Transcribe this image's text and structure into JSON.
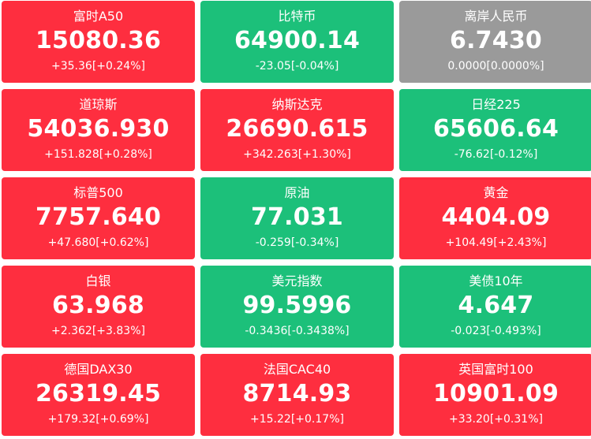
{
  "colors": {
    "up": "#fe2e3f",
    "down": "#1cc07a",
    "flat": "#9a9a9a",
    "text": "#ffffff"
  },
  "tiles": [
    {
      "name": "富时A50",
      "price": "15080.36",
      "change": "+35.36[+0.24%]",
      "trend": "up"
    },
    {
      "name": "比特币",
      "price": "64900.14",
      "change": "-23.05[-0.04%]",
      "trend": "down"
    },
    {
      "name": "离岸人民币",
      "price": "6.7430",
      "change": "0.0000[0.0000%]",
      "trend": "flat"
    },
    {
      "name": "道琼斯",
      "price": "54036.930",
      "change": "+151.828[+0.28%]",
      "trend": "up"
    },
    {
      "name": "纳斯达克",
      "price": "26690.615",
      "change": "+342.263[+1.30%]",
      "trend": "up"
    },
    {
      "name": "日经225",
      "price": "65606.64",
      "change": "-76.62[-0.12%]",
      "trend": "down"
    },
    {
      "name": "标普500",
      "price": "7757.640",
      "change": "+47.680[+0.62%]",
      "trend": "up"
    },
    {
      "name": "原油",
      "price": "77.031",
      "change": "-0.259[-0.34%]",
      "trend": "down"
    },
    {
      "name": "黄金",
      "price": "4404.09",
      "change": "+104.49[+2.43%]",
      "trend": "up"
    },
    {
      "name": "白银",
      "price": "63.968",
      "change": "+2.362[+3.83%]",
      "trend": "up"
    },
    {
      "name": "美元指数",
      "price": "99.5996",
      "change": "-0.3436[-0.3438%]",
      "trend": "down"
    },
    {
      "name": "美债10年",
      "price": "4.647",
      "change": "-0.023[-0.493%]",
      "trend": "down"
    },
    {
      "name": "德国DAX30",
      "price": "26319.45",
      "change": "+179.32[+0.69%]",
      "trend": "up"
    },
    {
      "name": "法国CAC40",
      "price": "8714.93",
      "change": "+15.22[+0.17%]",
      "trend": "up"
    },
    {
      "name": "英国富时100",
      "price": "10901.09",
      "change": "+33.20[+0.31%]",
      "trend": "up"
    }
  ]
}
